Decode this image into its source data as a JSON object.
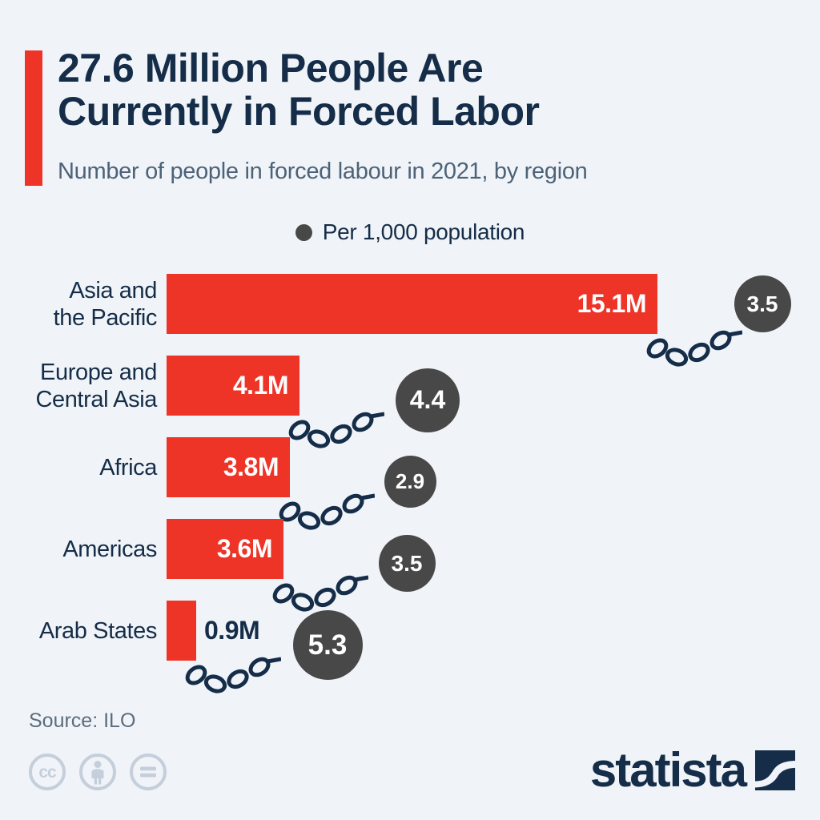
{
  "colors": {
    "background": "#f0f4f8",
    "bar_red": "#ee3327",
    "navy": "#152d48",
    "subtitle_slate": "#4d6278",
    "circle_gray": "#484848",
    "circle_text": "#ffffff",
    "source_gray": "#5c6c7d",
    "license_gray": "#c5cedb"
  },
  "header": {
    "title_line1": "27.6 Million People Are",
    "title_line2": "Currently in Forced Labor",
    "subtitle": "Number of people in forced labour in 2021, by region"
  },
  "legend": {
    "label": "Per 1,000 population"
  },
  "chart_data": {
    "type": "bar",
    "orientation": "horizontal",
    "title": "27.6 Million People Are Currently in Forced Labor",
    "subtitle": "Number of people in forced labour in 2021, by region",
    "categories": [
      "Asia and the Pacific",
      "Europe and Central Asia",
      "Africa",
      "Americas",
      "Arab States"
    ],
    "category_lines": [
      [
        "Asia and",
        "the Pacific"
      ],
      [
        "Europe and",
        "Central Asia"
      ],
      [
        "Africa"
      ],
      [
        "Americas"
      ],
      [
        "Arab States"
      ]
    ],
    "series": [
      {
        "name": "People in forced labour (millions)",
        "unit": "millions",
        "values": [
          15.1,
          4.1,
          3.8,
          3.6,
          0.9
        ],
        "labels": [
          "15.1M",
          "4.1M",
          "3.8M",
          "3.6M",
          "0.9M"
        ]
      },
      {
        "name": "Per 1,000 population",
        "values": [
          3.5,
          4.4,
          2.9,
          3.5,
          5.3
        ],
        "labels": [
          "3.5",
          "4.4",
          "2.9",
          "3.5",
          "5.3"
        ]
      }
    ],
    "x_axis": {
      "visible": false,
      "range_millions": [
        0,
        15.1
      ]
    },
    "grid": false,
    "legend_position": "top-center",
    "bar_color": "#ee3327",
    "bubble_color": "#484848"
  },
  "footer": {
    "source": "Source: ILO",
    "license_icons": [
      "cc-icon",
      "attribution-person-icon",
      "equals-icon"
    ],
    "brand": "statista"
  }
}
